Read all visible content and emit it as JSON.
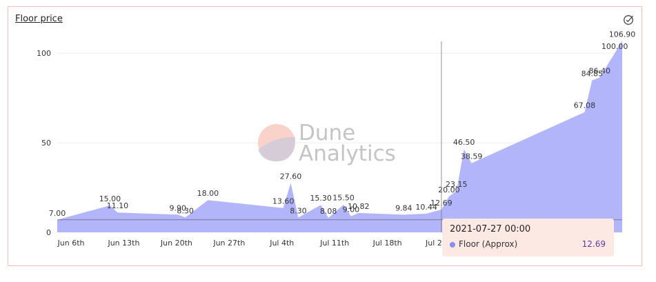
{
  "title": "Floor price",
  "icons": {
    "check": "circle-check-icon"
  },
  "colors": {
    "area_fill": "#b3b5fb",
    "tooltip_bg": "#fde9e4",
    "tooltip_value": "#5a3aa8",
    "card_border": "#f2c2b4",
    "series_dot": "#8b8cf0"
  },
  "watermark": {
    "line1": "Dune",
    "line2": "Analytics"
  },
  "tooltip": {
    "date": "2021-07-27 00:00",
    "series": "Floor (Approx)",
    "value": "12.69"
  },
  "chart_data": {
    "type": "area",
    "title": "Floor price",
    "ylim": [
      0,
      107
    ],
    "y_ticks": [
      0,
      50,
      100
    ],
    "y_tick_labels": [
      "0",
      "50",
      "100"
    ],
    "x_ticks": [
      "2021-06-06",
      "2021-06-13",
      "2021-06-20",
      "2021-06-27",
      "2021-07-04",
      "2021-07-11",
      "2021-07-18",
      "2021-07-25"
    ],
    "x_tick_labels": [
      "Jun 6th",
      "Jun 13th",
      "Jun 20th",
      "Jun 27th",
      "Jul 4th",
      "Jul 11th",
      "Jul 18th",
      "Jul 25th"
    ],
    "reference_line": 7.0,
    "grid": true,
    "series": [
      {
        "name": "Floor (Approx)",
        "points": [
          {
            "x": "2021-06-06",
            "y": 7.0
          },
          {
            "x": "2021-06-13",
            "y": 15.0
          },
          {
            "x": "2021-06-14",
            "y": 11.1
          },
          {
            "x": "2021-06-22",
            "y": 9.9
          },
          {
            "x": "2021-06-23",
            "y": 8.3
          },
          {
            "x": "2021-06-26",
            "y": 18.0
          },
          {
            "x": "2021-07-06",
            "y": 13.6
          },
          {
            "x": "2021-07-07",
            "y": 27.6
          },
          {
            "x": "2021-07-08",
            "y": 8.3
          },
          {
            "x": "2021-07-11",
            "y": 15.3
          },
          {
            "x": "2021-07-12",
            "y": 8.08
          },
          {
            "x": "2021-07-14",
            "y": 15.5
          },
          {
            "x": "2021-07-15",
            "y": 9.0
          },
          {
            "x": "2021-07-16",
            "y": 10.82
          },
          {
            "x": "2021-07-22",
            "y": 9.84
          },
          {
            "x": "2021-07-25",
            "y": 10.44
          },
          {
            "x": "2021-07-27",
            "y": 12.69
          },
          {
            "x": "2021-07-28",
            "y": 20.0
          },
          {
            "x": "2021-07-29",
            "y": 23.15
          },
          {
            "x": "2021-07-30",
            "y": 46.5
          },
          {
            "x": "2021-07-31",
            "y": 38.59
          },
          {
            "x": "2021-08-15",
            "y": 67.08
          },
          {
            "x": "2021-08-16",
            "y": 84.85
          },
          {
            "x": "2021-08-17",
            "y": 86.4
          },
          {
            "x": "2021-08-19",
            "y": 100.0
          },
          {
            "x": "2021-08-20",
            "y": 106.9
          }
        ],
        "labels": [
          "7.00",
          "15.00",
          "11.10",
          "9.90",
          "8.30",
          "18.00",
          "13.60",
          "27.60",
          "8.30",
          "15.30",
          "8.08",
          "15.50",
          "9.00",
          "10.82",
          "9.84",
          "10.44",
          "12.69",
          "20.00",
          "23.15",
          "46.50",
          "38.59",
          "67.08",
          "84.85",
          "86.40",
          "100.00",
          "106.90"
        ]
      }
    ]
  }
}
